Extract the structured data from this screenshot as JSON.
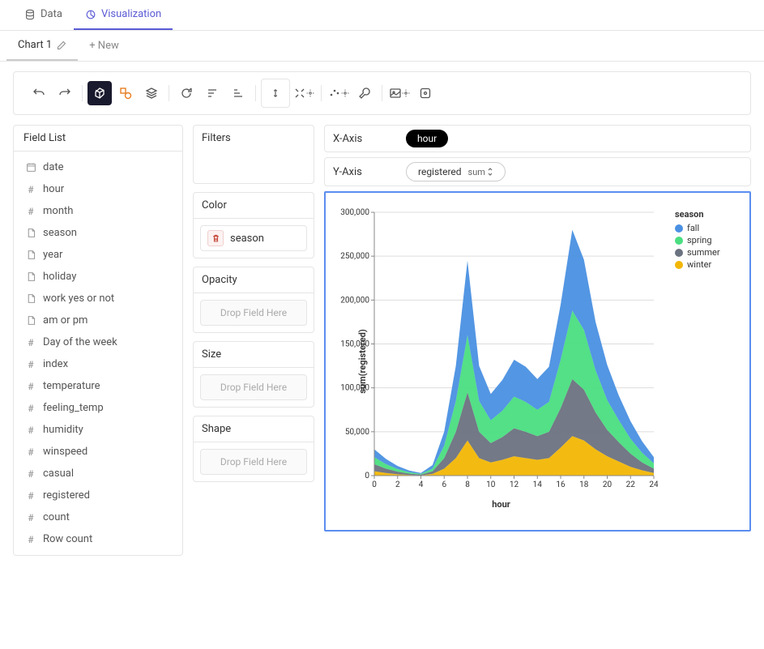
{
  "top_tabs": {
    "data": "Data",
    "visualization": "Visualization"
  },
  "chart_tabs": {
    "current": "Chart 1",
    "new": "+ New"
  },
  "panels": {
    "field_list_header": "Field List",
    "filters_header": "Filters",
    "color_header": "Color",
    "opacity_header": "Opacity",
    "size_header": "Size",
    "shape_header": "Shape",
    "drop_placeholder": "Drop Field Here"
  },
  "fields": [
    {
      "name": "date",
      "type": "date"
    },
    {
      "name": "hour",
      "type": "number"
    },
    {
      "name": "month",
      "type": "number"
    },
    {
      "name": "season",
      "type": "text"
    },
    {
      "name": "year",
      "type": "text"
    },
    {
      "name": "holiday",
      "type": "text"
    },
    {
      "name": "work yes or not",
      "type": "text"
    },
    {
      "name": "am or pm",
      "type": "text"
    },
    {
      "name": "Day of the week",
      "type": "number"
    },
    {
      "name": "index",
      "type": "number"
    },
    {
      "name": "temperature",
      "type": "number"
    },
    {
      "name": "feeling_temp",
      "type": "number"
    },
    {
      "name": "humidity",
      "type": "number"
    },
    {
      "name": "winspeed",
      "type": "number"
    },
    {
      "name": "casual",
      "type": "number"
    },
    {
      "name": "registered",
      "type": "number"
    },
    {
      "name": "count",
      "type": "number"
    },
    {
      "name": "Row count",
      "type": "number"
    }
  ],
  "color_encoding": "season",
  "axes": {
    "x_label": "X-Axis",
    "x_field": "hour",
    "y_label": "Y-Axis",
    "y_field": "registered",
    "y_agg": "sum"
  },
  "chart": {
    "type": "stacked-area",
    "x_axis_title": "hour",
    "y_axis_title": "sum(registered)",
    "xlim": [
      0,
      24
    ],
    "ylim": [
      0,
      300000
    ],
    "xtick_step": 2,
    "ytick_step": 50000,
    "ytick_labels": [
      "0",
      "50,000",
      "100,000",
      "150,000",
      "200,000",
      "250,000",
      "300,000"
    ],
    "background_color": "#ffffff",
    "grid_color": "#dddddd",
    "x_values": [
      0,
      1,
      2,
      3,
      4,
      5,
      6,
      7,
      8,
      9,
      10,
      11,
      12,
      13,
      14,
      15,
      16,
      17,
      18,
      19,
      20,
      21,
      22,
      23,
      24
    ],
    "series": [
      {
        "name": "winter",
        "color": "#f2b705",
        "values": [
          5000,
          3000,
          1500,
          800,
          400,
          2000,
          8000,
          20000,
          40000,
          20000,
          15000,
          18000,
          22000,
          20000,
          18000,
          20000,
          32000,
          45000,
          40000,
          30000,
          22000,
          16000,
          10000,
          6000,
          3000
        ]
      },
      {
        "name": "summer",
        "color": "#6b7280",
        "values": [
          8000,
          5000,
          3000,
          1500,
          800,
          3000,
          12000,
          30000,
          55000,
          30000,
          22000,
          26000,
          32000,
          30000,
          27000,
          30000,
          45000,
          65000,
          58000,
          42000,
          30000,
          22000,
          15000,
          9000,
          5000
        ]
      },
      {
        "name": "spring",
        "color": "#4ade80",
        "values": [
          8000,
          5000,
          3000,
          1500,
          800,
          3000,
          14000,
          35000,
          65000,
          35000,
          26000,
          30000,
          36000,
          34000,
          30000,
          34000,
          55000,
          78000,
          68000,
          48000,
          34000,
          25000,
          17000,
          11000,
          6000
        ]
      },
      {
        "name": "fall",
        "color": "#4a90e2",
        "values": [
          9000,
          6000,
          3500,
          2000,
          1000,
          4000,
          16000,
          40000,
          85000,
          40000,
          30000,
          35000,
          42000,
          40000,
          35000,
          40000,
          63000,
          92000,
          80000,
          55000,
          40000,
          28000,
          20000,
          13000,
          7000
        ]
      }
    ],
    "legend_title": "season",
    "legend_order": [
      "fall",
      "spring",
      "summer",
      "winter"
    ],
    "legend_colors": {
      "fall": "#4a90e2",
      "spring": "#4ade80",
      "summer": "#6b7280",
      "winter": "#f2b705"
    },
    "title_fontsize": 11,
    "label_fontsize": 10
  }
}
